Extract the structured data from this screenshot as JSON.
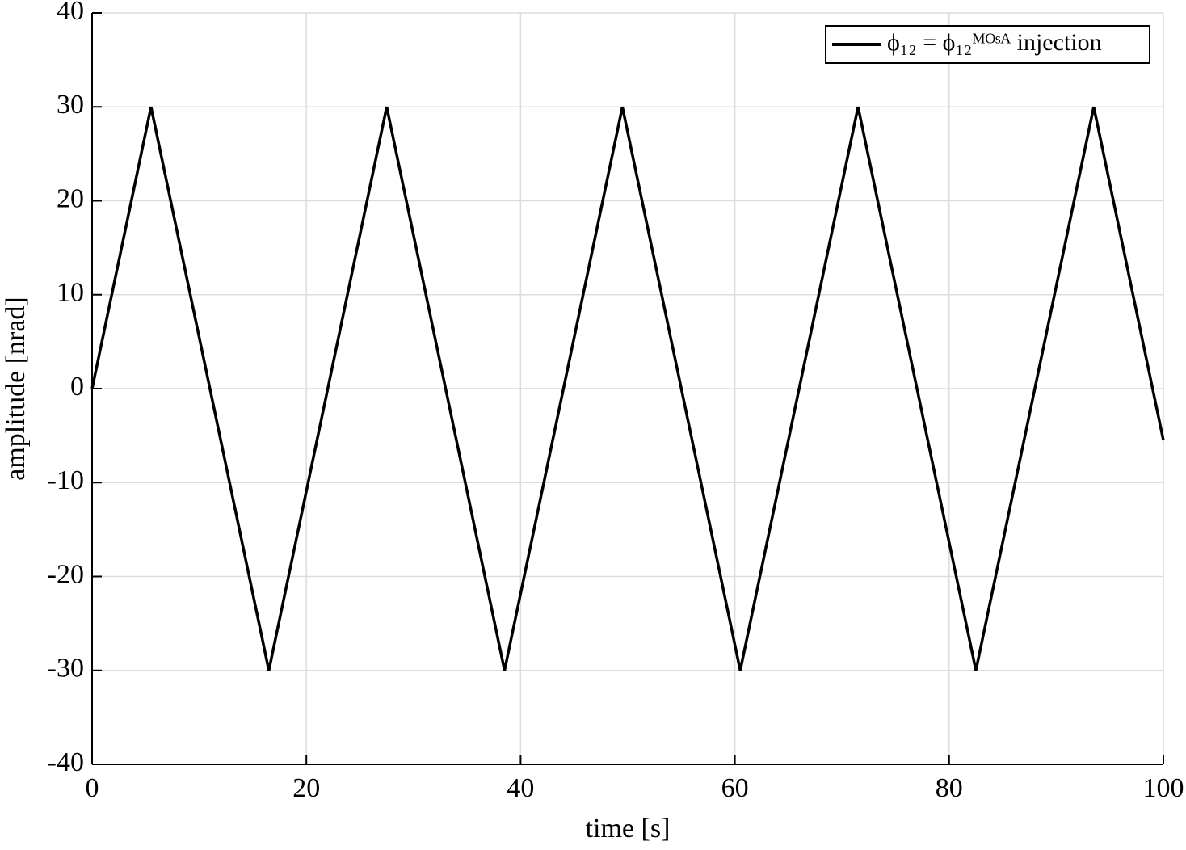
{
  "chart_data": {
    "type": "line",
    "x": [
      0,
      5.5,
      16.5,
      27.5,
      38.5,
      49.5,
      60.5,
      71.5,
      82.5,
      93.5,
      100
    ],
    "series": [
      {
        "name": "ϕ₁₂ = ϕ₁₂ᴹᴼˢᴬ injection",
        "color": "#000000",
        "values": [
          0,
          30,
          -30,
          30,
          -30,
          30,
          -30,
          30,
          -30,
          30,
          -5.5
        ]
      }
    ],
    "xlabel": "time [s]",
    "ylabel": "amplitude [nrad]",
    "xlim": [
      0,
      100
    ],
    "xticks": [
      0,
      20,
      40,
      60,
      80,
      100
    ],
    "ylim": [
      -40,
      40
    ],
    "yticks": [
      -40,
      -30,
      -20,
      -10,
      0,
      10,
      20,
      30,
      40
    ],
    "grid": true,
    "legend": "upper-right"
  }
}
